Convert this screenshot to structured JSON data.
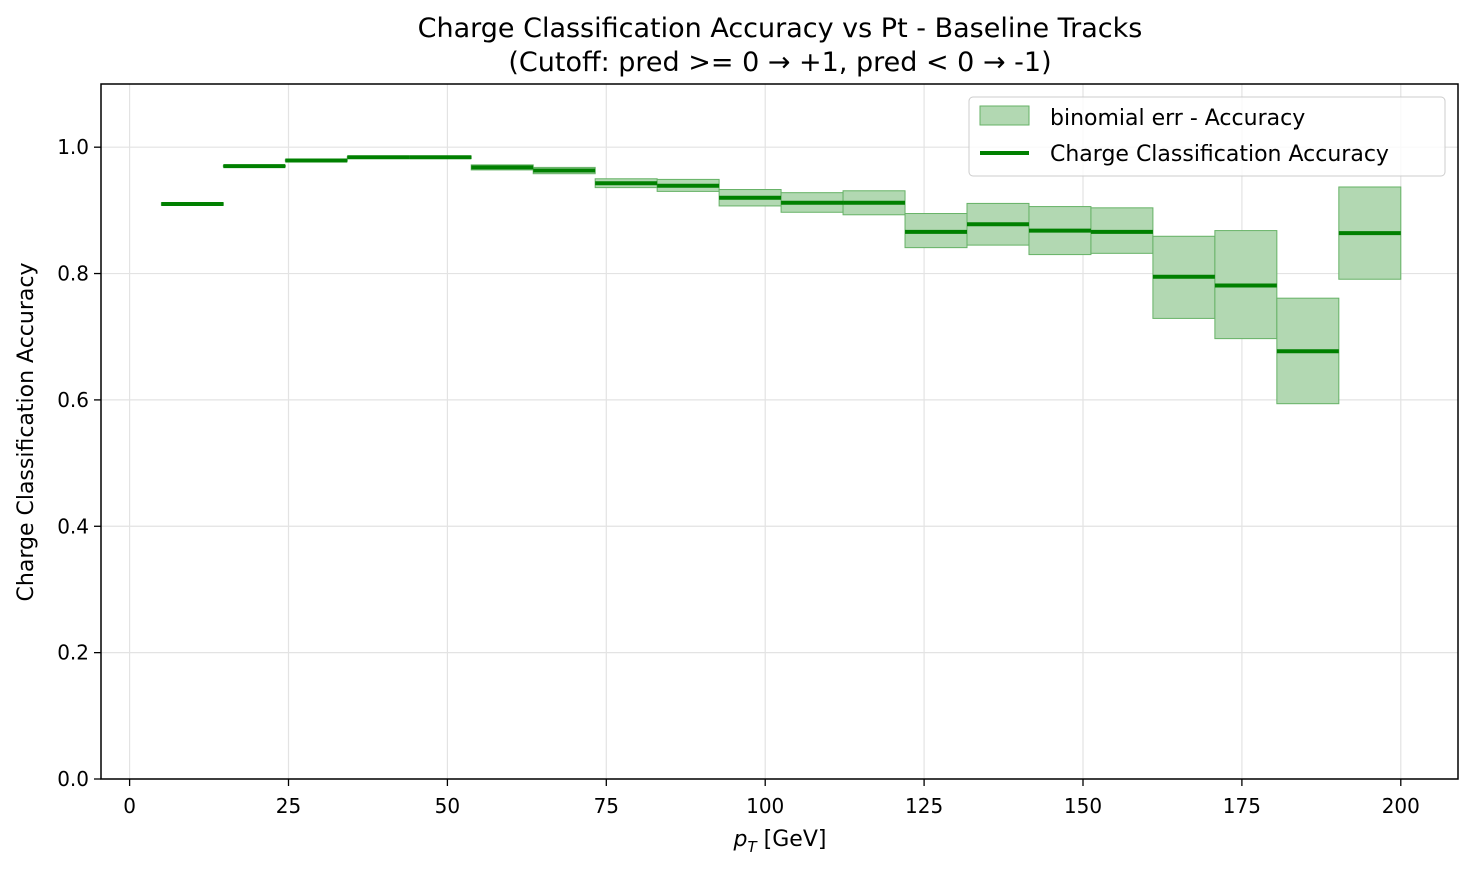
{
  "chart_data": {
    "type": "step-error",
    "title": "Charge Classification Accuracy vs Pt - Baseline Tracks",
    "subtitle": "(Cutoff: pred >= 0 → +1, pred < 0 → -1)",
    "xlabel_main": "p",
    "xlabel_sub": "T",
    "xlabel_unit": " [GeV]",
    "ylabel": "Charge Classification Accuracy",
    "xlim": [
      -4.5,
      209
    ],
    "ylim": [
      0.0,
      1.1
    ],
    "xticks": [
      0,
      25,
      50,
      75,
      100,
      125,
      150,
      175,
      200
    ],
    "yticks": [
      0.0,
      0.2,
      0.4,
      0.6,
      0.8,
      1.0
    ],
    "ytick_labels": [
      "0.0",
      "0.2",
      "0.4",
      "0.6",
      "0.8",
      "1.0"
    ],
    "grid": true,
    "legend_position": "upper right",
    "colors": {
      "line": "#008000",
      "band_fill": "#b2d8b2",
      "band_edge": "#66b266"
    },
    "series": [
      {
        "name": "Charge Classification Accuracy",
        "error_label": "binomial err - Accuracy",
        "bins": [
          {
            "x0": 5.0,
            "x1": 14.75,
            "y": 0.91,
            "lo": 0.908,
            "hi": 0.912
          },
          {
            "x0": 14.75,
            "x1": 24.5,
            "y": 0.97,
            "lo": 0.969,
            "hi": 0.971
          },
          {
            "x0": 24.5,
            "x1": 34.25,
            "y": 0.979,
            "lo": 0.978,
            "hi": 0.98
          },
          {
            "x0": 34.25,
            "x1": 44.0,
            "y": 0.984,
            "lo": 0.983,
            "hi": 0.985
          },
          {
            "x0": 44.0,
            "x1": 53.75,
            "y": 0.984,
            "lo": 0.982,
            "hi": 0.986
          },
          {
            "x0": 53.75,
            "x1": 63.5,
            "y": 0.968,
            "lo": 0.964,
            "hi": 0.972
          },
          {
            "x0": 63.5,
            "x1": 73.25,
            "y": 0.963,
            "lo": 0.958,
            "hi": 0.968
          },
          {
            "x0": 73.25,
            "x1": 83.0,
            "y": 0.943,
            "lo": 0.936,
            "hi": 0.95
          },
          {
            "x0": 83.0,
            "x1": 92.75,
            "y": 0.939,
            "lo": 0.93,
            "hi": 0.949
          },
          {
            "x0": 92.75,
            "x1": 102.5,
            "y": 0.92,
            "lo": 0.907,
            "hi": 0.933
          },
          {
            "x0": 102.5,
            "x1": 112.25,
            "y": 0.912,
            "lo": 0.897,
            "hi": 0.928
          },
          {
            "x0": 112.25,
            "x1": 122.0,
            "y": 0.912,
            "lo": 0.893,
            "hi": 0.931
          },
          {
            "x0": 122.0,
            "x1": 131.75,
            "y": 0.866,
            "lo": 0.841,
            "hi": 0.895
          },
          {
            "x0": 131.75,
            "x1": 141.5,
            "y": 0.878,
            "lo": 0.845,
            "hi": 0.911
          },
          {
            "x0": 141.5,
            "x1": 151.25,
            "y": 0.868,
            "lo": 0.83,
            "hi": 0.906
          },
          {
            "x0": 151.25,
            "x1": 161.0,
            "y": 0.866,
            "lo": 0.832,
            "hi": 0.904
          },
          {
            "x0": 161.0,
            "x1": 170.75,
            "y": 0.795,
            "lo": 0.729,
            "hi": 0.859
          },
          {
            "x0": 170.75,
            "x1": 180.5,
            "y": 0.781,
            "lo": 0.697,
            "hi": 0.868
          },
          {
            "x0": 180.5,
            "x1": 190.25,
            "y": 0.677,
            "lo": 0.594,
            "hi": 0.761
          },
          {
            "x0": 190.25,
            "x1": 200.0,
            "y": 0.864,
            "lo": 0.791,
            "hi": 0.937
          }
        ]
      }
    ]
  }
}
